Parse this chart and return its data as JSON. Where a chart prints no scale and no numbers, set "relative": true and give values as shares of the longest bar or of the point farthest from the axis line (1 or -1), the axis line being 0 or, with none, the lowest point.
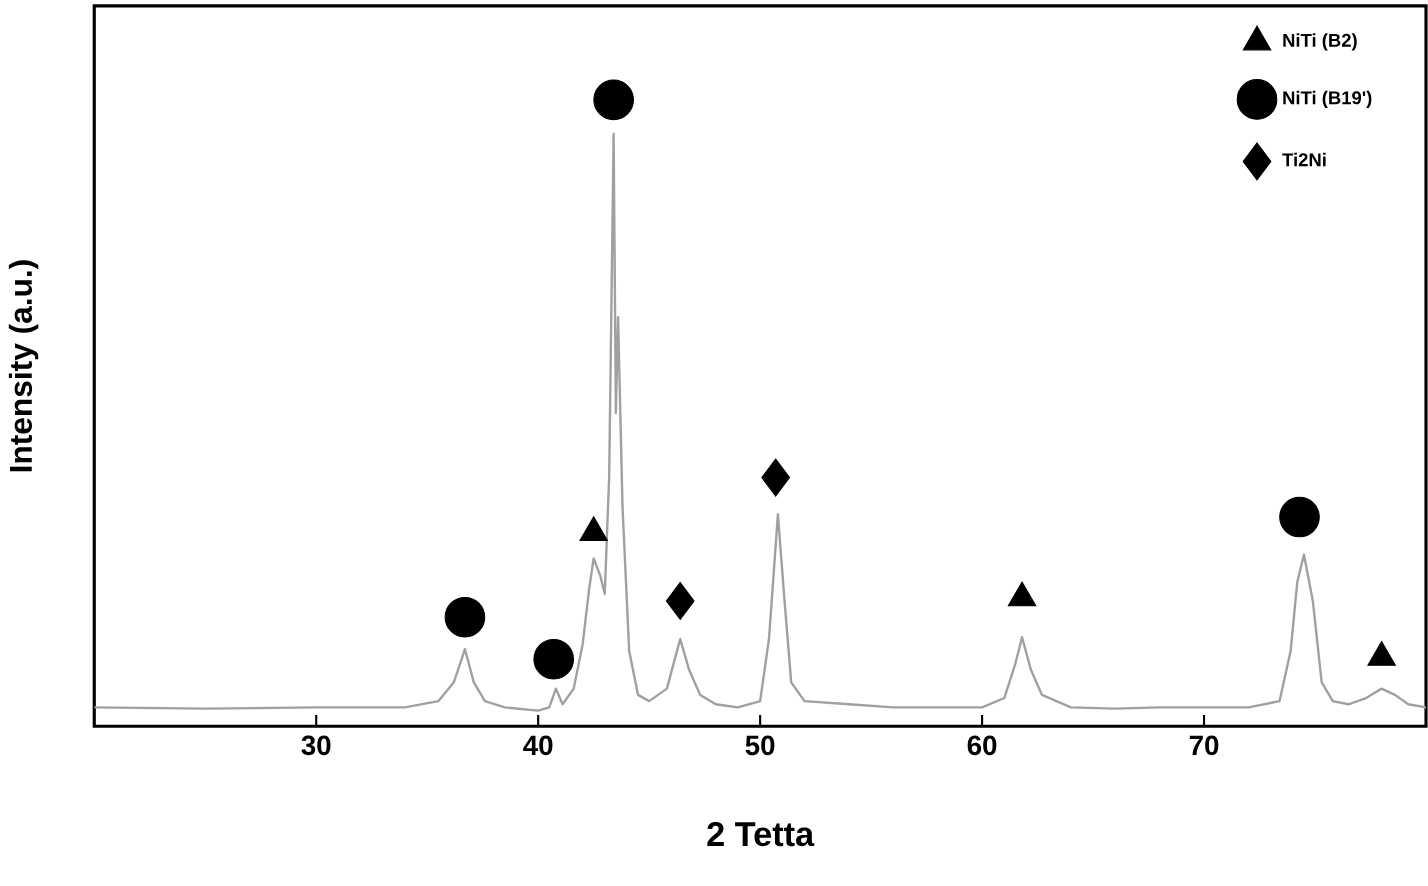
{
  "chart_data": {
    "type": "line",
    "xlabel": "2 Tetta",
    "ylabel": "Intensity (a.u.)",
    "xlim": [
      20,
      80
    ],
    "xticks": [
      30,
      40,
      50,
      60,
      70
    ],
    "relative": true,
    "legend": "top right",
    "series": [
      {
        "color": "#a0a0a0",
        "marker": "none",
        "x": [
          20,
          25,
          30,
          34,
          35.5,
          36.2,
          36.7,
          37.1,
          37.6,
          38.5,
          40,
          40.5,
          40.8,
          41.1,
          41.6,
          42.0,
          42.3,
          42.5,
          42.8,
          43.0,
          43.2,
          43.4,
          43.5,
          43.6,
          43.8,
          44.1,
          44.5,
          45.0,
          45.8,
          46.1,
          46.4,
          46.8,
          47.3,
          48,
          49,
          50.0,
          50.4,
          50.8,
          51.1,
          51.4,
          52,
          54,
          56,
          58,
          60,
          61.0,
          61.5,
          61.8,
          62.2,
          62.7,
          64,
          66,
          68,
          70,
          72,
          73.4,
          73.9,
          74.2,
          74.5,
          74.9,
          75.3,
          75.8,
          76.5,
          77.3,
          78.0,
          78.6,
          79.2,
          80
        ],
        "values": [
          0.03,
          0.028,
          0.03,
          0.03,
          0.04,
          0.07,
          0.123,
          0.07,
          0.04,
          0.03,
          0.025,
          0.03,
          0.06,
          0.035,
          0.06,
          0.13,
          0.22,
          0.268,
          0.24,
          0.211,
          0.4,
          0.946,
          0.5,
          0.653,
          0.35,
          0.12,
          0.05,
          0.04,
          0.06,
          0.1,
          0.139,
          0.09,
          0.05,
          0.035,
          0.03,
          0.04,
          0.14,
          0.338,
          0.2,
          0.07,
          0.04,
          0.035,
          0.03,
          0.03,
          0.03,
          0.045,
          0.1,
          0.142,
          0.09,
          0.05,
          0.03,
          0.028,
          0.03,
          0.03,
          0.03,
          0.04,
          0.12,
          0.23,
          0.274,
          0.2,
          0.07,
          0.04,
          0.035,
          0.045,
          0.06,
          0.05,
          0.035,
          0.03
        ]
      },
      {
        "type": "scatter",
        "name": "NiTi (B2)",
        "color": "#000000",
        "marker": "triangle",
        "x": [
          42.5,
          61.8,
          78.0
        ],
        "values": [
          0.309,
          0.205,
          0.11
        ]
      },
      {
        "type": "scatter",
        "name": "NiTi (B19')",
        "color": "#000000",
        "marker": "circle",
        "x": [
          36.7,
          40.7,
          43.4,
          74.3
        ],
        "values": [
          0.174,
          0.107,
          1.0,
          0.334
        ]
      },
      {
        "type": "scatter",
        "name": "Ti2Ni",
        "color": "#000000",
        "marker": "diamond",
        "x": [
          46.4,
          50.7
        ],
        "values": [
          0.2,
          0.397
        ]
      }
    ]
  }
}
